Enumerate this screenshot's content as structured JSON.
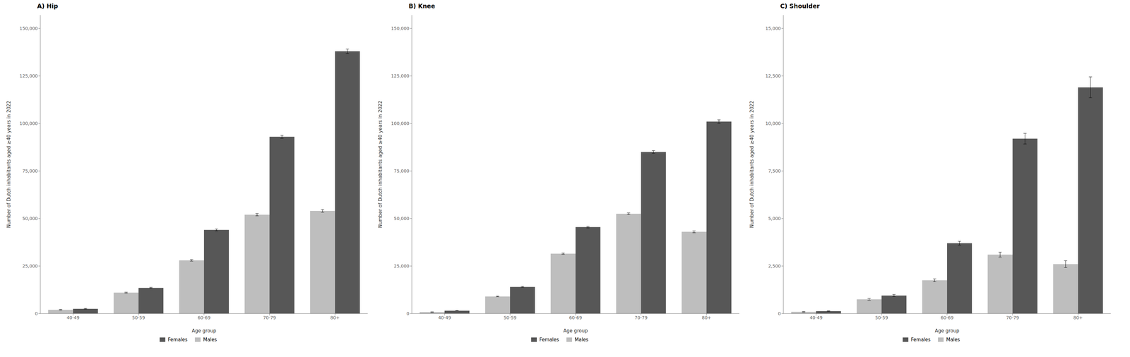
{
  "chart_data": [
    {
      "type": "bar",
      "title": "A) Hip",
      "x_label": "Age group",
      "y_label": "Number of Dutch inhabitants aged ≥40 years in 2022",
      "categories": [
        "40-49",
        "50-59",
        "60-69",
        "70-79",
        "80+"
      ],
      "series": [
        {
          "name": "Males",
          "color": "#bebebe",
          "values": [
            2000,
            11000,
            28000,
            52000,
            54000
          ],
          "errors": [
            150,
            250,
            400,
            600,
            700
          ]
        },
        {
          "name": "Females",
          "color": "#575757",
          "values": [
            2500,
            13500,
            44000,
            93000,
            138000
          ],
          "errors": [
            200,
            300,
            500,
            800,
            1200
          ]
        }
      ],
      "ylim": [
        0,
        157000
      ],
      "yticks": [
        0,
        {
          "value": 25000,
          "label": "25,000"
        },
        {
          "value": 50000,
          "label": "50,000"
        },
        {
          "value": 75000,
          "label": "75,000"
        },
        {
          "value": 100000,
          "label": "100,000"
        },
        {
          "value": 125000,
          "label": "125,000"
        },
        {
          "value": 150000,
          "label": "150,000"
        }
      ],
      "grid": false,
      "legend": "bottom"
    },
    {
      "type": "bar",
      "title": "B) Knee",
      "x_label": "Age group",
      "y_label": "Number of Dutch inhabitants aged ≥40 years in 2022",
      "categories": [
        "40-49",
        "50-59",
        "60-69",
        "70-79",
        "80+"
      ],
      "series": [
        {
          "name": "Males",
          "color": "#bebebe",
          "values": [
            800,
            9000,
            31500,
            52500,
            43000
          ],
          "errors": [
            80,
            180,
            320,
            450,
            500
          ]
        },
        {
          "name": "Females",
          "color": "#575757",
          "values": [
            1500,
            14000,
            45500,
            85000,
            101000
          ],
          "errors": [
            100,
            250,
            450,
            700,
            900
          ]
        }
      ],
      "ylim": [
        0,
        157000
      ],
      "yticks": [
        0,
        {
          "value": 25000,
          "label": "25,000"
        },
        {
          "value": 50000,
          "label": "50,000"
        },
        {
          "value": 75000,
          "label": "75,000"
        },
        {
          "value": 100000,
          "label": "100,000"
        },
        {
          "value": 125000,
          "label": "125,000"
        },
        {
          "value": 150000,
          "label": "150,000"
        }
      ],
      "grid": false,
      "legend": "bottom"
    },
    {
      "type": "bar",
      "title": "C) Shoulder",
      "x_label": "Age group",
      "y_label": "Number of Dutch inhabitants aged ≥40 years in 2022",
      "categories": [
        "40-49",
        "50-59",
        "60-69",
        "70-79",
        "80+"
      ],
      "series": [
        {
          "name": "Males",
          "color": "#bebebe",
          "values": [
            90,
            750,
            1750,
            3100,
            2600
          ],
          "errors": [
            12,
            45,
            75,
            130,
            180
          ]
        },
        {
          "name": "Females",
          "color": "#575757",
          "values": [
            130,
            950,
            3700,
            9200,
            11900
          ],
          "errors": [
            15,
            55,
            100,
            280,
            550
          ]
        }
      ],
      "ylim": [
        0,
        15700
      ],
      "yticks": [
        0,
        {
          "value": 2500,
          "label": "2,500"
        },
        {
          "value": 5000,
          "label": "5,000"
        },
        {
          "value": 7500,
          "label": "7,500"
        },
        {
          "value": 10000,
          "label": "10,000"
        },
        {
          "value": 12500,
          "label": "12,500"
        },
        {
          "value": 15000,
          "label": "15,000"
        }
      ],
      "grid": false,
      "legend": "bottom"
    }
  ]
}
